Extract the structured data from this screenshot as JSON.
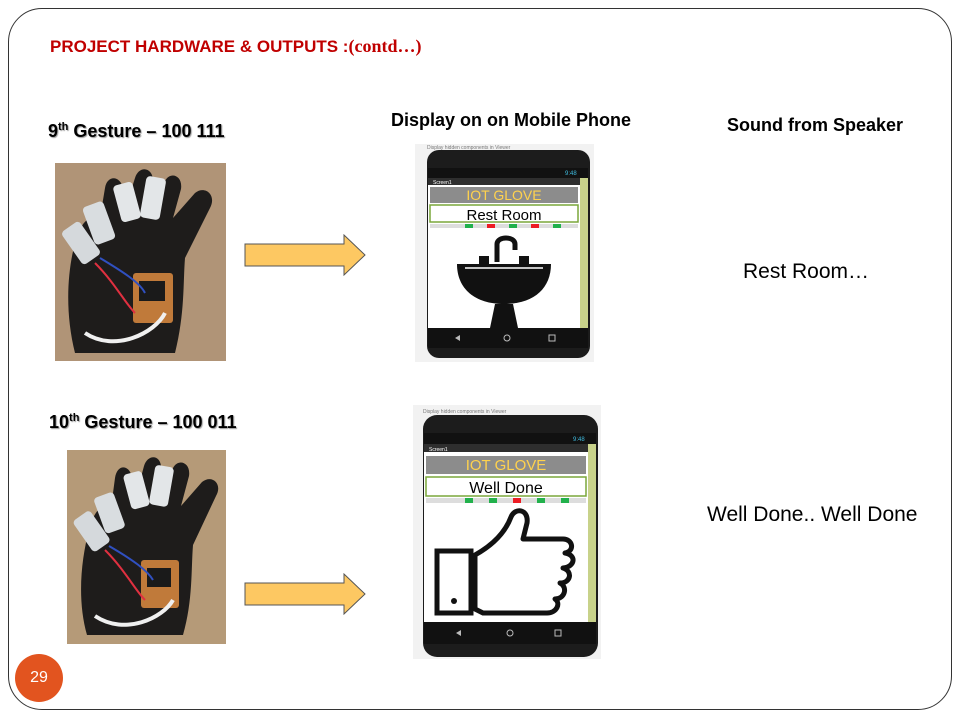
{
  "slide": {
    "title_main": "PROJECT  HARDWARE & OUTPUTS :",
    "title_contd": "(contd…)",
    "page_number": "29"
  },
  "columns": {
    "display_heading": "Display on on Mobile Phone",
    "sound_heading": "Sound from Speaker"
  },
  "rows": [
    {
      "gesture_num": "9",
      "gesture_suffix": "th",
      "gesture_rest": " Gesture –  100 111",
      "phone_hint": "Display hidden components in Viewer",
      "phone_screen_name": "Screen1",
      "phone_time": "9:48",
      "app_title": "IOT GLOVE",
      "message": "Rest Room",
      "image_icon": "sink-icon",
      "sound_text": "Rest Room…"
    },
    {
      "gesture_num": "10",
      "gesture_suffix": "th",
      "gesture_rest": " Gesture –  100 011",
      "phone_hint": "Display hidden components in Viewer",
      "phone_screen_name": "Screen1",
      "phone_time": "9:48",
      "app_title": "IOT GLOVE",
      "message": "Well Done",
      "image_icon": "thumbs-up-icon",
      "sound_text": "Well Done.. Well Done"
    }
  ],
  "colors": {
    "title": "#c00000",
    "arrow_fill": "#fdc862",
    "page_badge": "#e2541f",
    "app_title_bar": "#8c8c8c",
    "app_title_text": "#ffd24d"
  }
}
